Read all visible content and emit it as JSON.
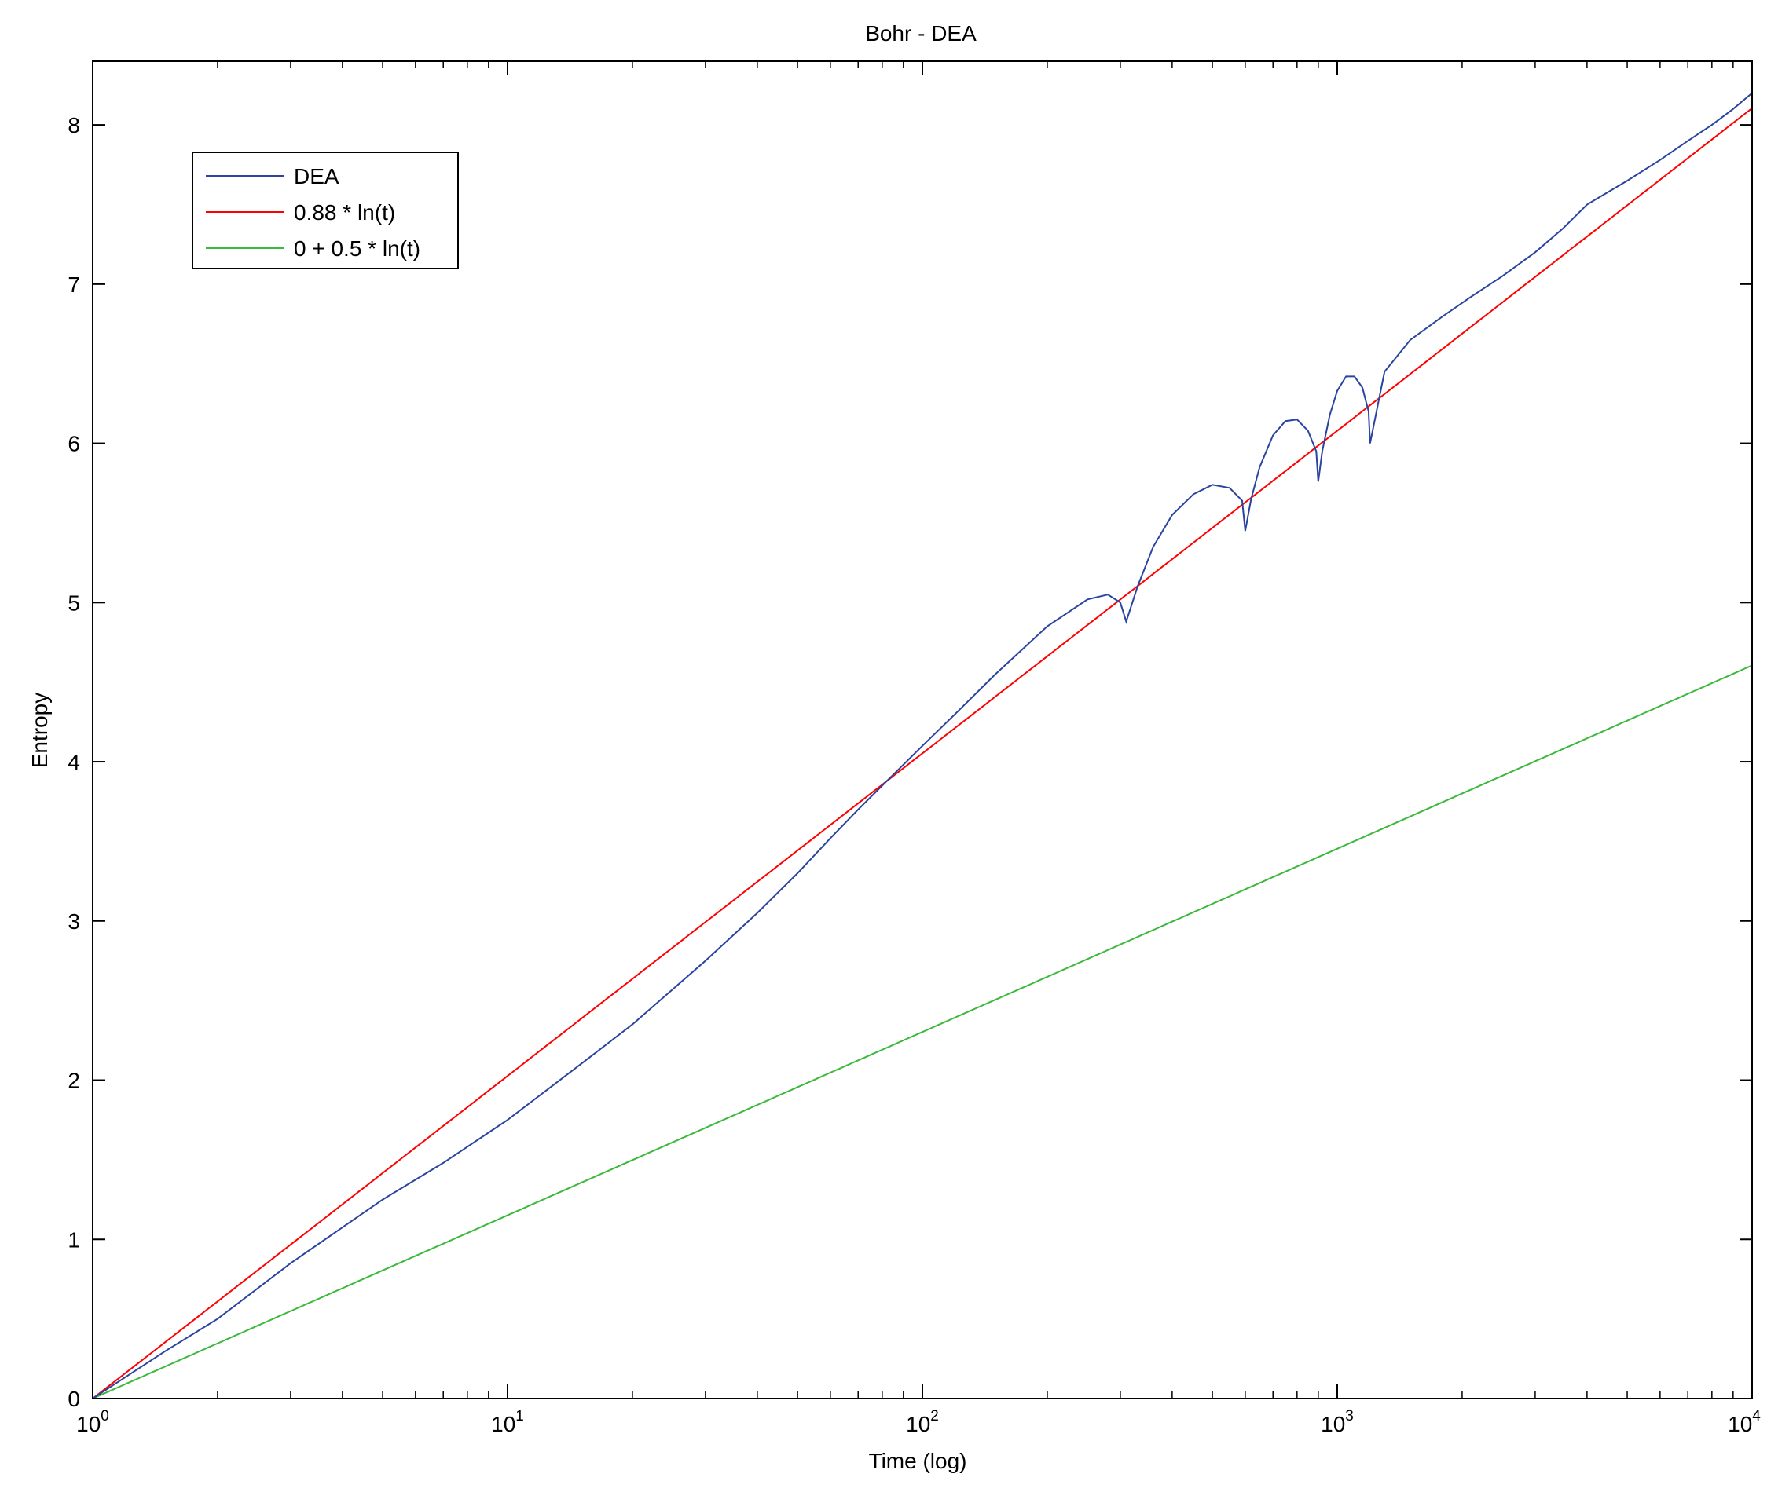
{
  "chart_data": {
    "type": "line",
    "title": "Bohr - DEA",
    "xlabel": "Time (log)",
    "ylabel": "Entropy",
    "xscale": "log",
    "xlim": [
      1,
      10000
    ],
    "ylim": [
      0,
      8.4
    ],
    "xticks": [
      {
        "value": 1,
        "base": "10",
        "exp": "0"
      },
      {
        "value": 10,
        "base": "10",
        "exp": "1"
      },
      {
        "value": 100,
        "base": "10",
        "exp": "2"
      },
      {
        "value": 1000,
        "base": "10",
        "exp": "3"
      },
      {
        "value": 10000,
        "base": "10",
        "exp": "4"
      }
    ],
    "yticks": [
      0,
      1,
      2,
      3,
      4,
      5,
      6,
      7,
      8
    ],
    "grid": false,
    "legend_position": "top-left",
    "series": [
      {
        "name": "DEA",
        "color": "#2a44a0",
        "kind": "data",
        "x": [
          1,
          1.5,
          2,
          3,
          5,
          7,
          10,
          15,
          20,
          30,
          40,
          50,
          60,
          70,
          80,
          100,
          120,
          150,
          200,
          250,
          280,
          300,
          310,
          330,
          360,
          400,
          450,
          500,
          550,
          590,
          600,
          620,
          650,
          700,
          750,
          800,
          850,
          890,
          900,
          920,
          960,
          1000,
          1050,
          1100,
          1150,
          1190,
          1200,
          1300,
          1500,
          1800,
          2100,
          2500,
          3000,
          3500,
          4000,
          5000,
          6000,
          7000,
          8000,
          9000,
          10000
        ],
        "y": [
          0,
          0.3,
          0.5,
          0.85,
          1.25,
          1.48,
          1.75,
          2.1,
          2.35,
          2.75,
          3.05,
          3.3,
          3.52,
          3.7,
          3.85,
          4.1,
          4.3,
          4.55,
          4.85,
          5.02,
          5.05,
          5.0,
          4.88,
          5.1,
          5.35,
          5.55,
          5.68,
          5.74,
          5.72,
          5.64,
          5.45,
          5.65,
          5.85,
          6.05,
          6.14,
          6.15,
          6.08,
          5.95,
          5.76,
          5.95,
          6.18,
          6.33,
          6.42,
          6.42,
          6.35,
          6.2,
          6.0,
          6.45,
          6.65,
          6.8,
          6.92,
          7.05,
          7.2,
          7.35,
          7.5,
          7.65,
          7.78,
          7.9,
          8.0,
          8.1,
          8.2
        ]
      },
      {
        "name": "0.88 * ln(t)",
        "color": "#ff0000",
        "kind": "function",
        "a": 0,
        "b": 0.88
      },
      {
        "name": "0 + 0.5 * ln(t)",
        "color": "#3cb83c",
        "kind": "function",
        "a": 0,
        "b": 0.5
      }
    ]
  }
}
